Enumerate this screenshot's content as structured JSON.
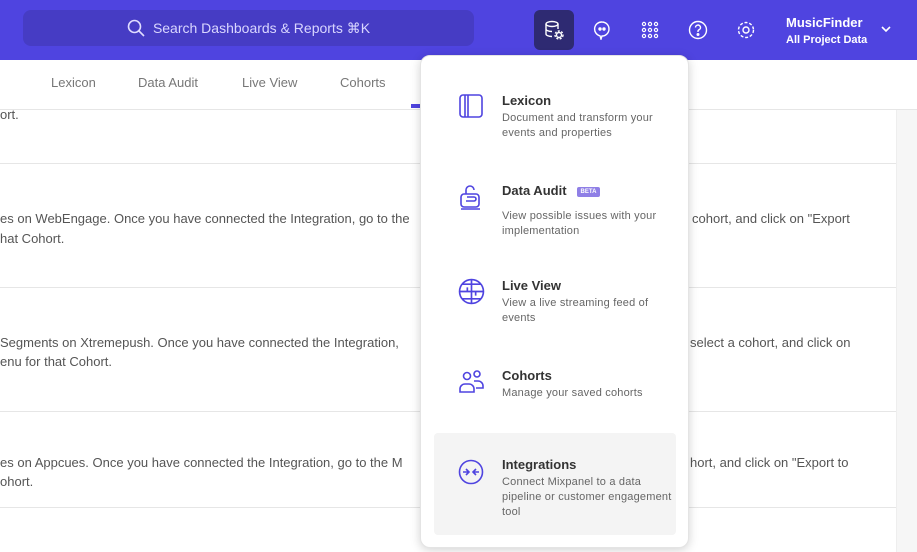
{
  "header": {
    "search_placeholder": "Search Dashboards & Reports ⌘K",
    "project_name": "MusicFinder",
    "project_scope": "All Project Data",
    "icons": [
      "data-management-icon",
      "chat-icon",
      "apps-grid-icon",
      "help-icon",
      "settings-icon"
    ],
    "accent": "#4f44e0"
  },
  "tabs": [
    {
      "label": "Lexicon"
    },
    {
      "label": "Data Audit"
    },
    {
      "label": "Live View"
    },
    {
      "label": "Cohorts"
    }
  ],
  "rows": [
    {
      "left1": "ort.",
      "left2": "",
      "right1": ""
    },
    {
      "left1": "es on WebEngage. Once you have connected the Integration, go to the",
      "left2": "hat Cohort.",
      "right1": "cohort, and click on \"Export"
    },
    {
      "left1": "Segments on Xtremepush. Once you have connected the Integration,",
      "left2": "enu for that Cohort.",
      "right1": "select a cohort, and click on"
    },
    {
      "left1": "es on Appcues. Once you have connected the Integration, go to the M",
      "left2": "ohort.",
      "right1": "hort, and click on \"Export to"
    }
  ],
  "menu": {
    "items": [
      {
        "title": "Lexicon",
        "desc": "Document and transform your events and properties",
        "icon": "book-icon"
      },
      {
        "title": "Data Audit",
        "badge": "BETA",
        "desc": "View possible issues with your implementation",
        "icon": "audit-lock-icon"
      },
      {
        "title": "Live View",
        "desc": "View a live streaming feed of events",
        "icon": "globe-icon"
      },
      {
        "title": "Cohorts",
        "desc": "Manage your saved cohorts",
        "icon": "users-icon"
      },
      {
        "title": "Integrations",
        "desc": "Connect Mixpanel to a data pipeline or customer engagement tool",
        "icon": "integrations-icon",
        "highlighted": true
      }
    ]
  }
}
